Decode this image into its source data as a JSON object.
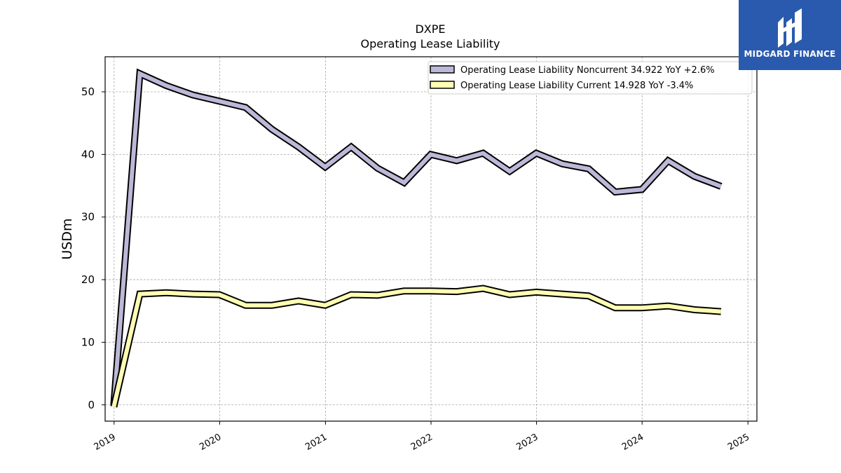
{
  "chart_data": {
    "type": "line",
    "ticker": "DXPE",
    "title": "Operating Lease Liability",
    "ylabel": "USDm",
    "xlabel": "",
    "ylim": [
      -2.6,
      55.6
    ],
    "y_ticks": [
      0,
      10,
      20,
      30,
      40,
      50
    ],
    "x_ticks": [
      "2019",
      "2020",
      "2021",
      "2022",
      "2023",
      "2024",
      "2025"
    ],
    "grid": true,
    "legend_position": "top-right",
    "x": [
      "2018-12-31",
      "2019-03-31",
      "2019-06-30",
      "2019-09-30",
      "2019-12-31",
      "2020-03-31",
      "2020-06-30",
      "2020-09-30",
      "2020-12-31",
      "2021-03-31",
      "2021-06-30",
      "2021-09-30",
      "2021-12-31",
      "2022-03-31",
      "2022-06-30",
      "2022-09-30",
      "2022-12-31",
      "2023-03-31",
      "2023-06-30",
      "2023-09-30",
      "2023-12-31",
      "2024-03-31",
      "2024-06-30",
      "2024-09-30"
    ],
    "series": [
      {
        "name": "Operating Lease Liability Noncurrent",
        "legend_label": "Operating Lease Liability Noncurrent  34.922 YoY +2.6%",
        "color": "#bcb8d8",
        "values": [
          0,
          52.9,
          51.0,
          49.5,
          48.5,
          47.5,
          44.0,
          41.2,
          38.0,
          41.2,
          37.8,
          35.5,
          40.0,
          39.0,
          40.2,
          37.3,
          40.2,
          38.5,
          37.7,
          34.0,
          34.4,
          39.0,
          36.5,
          34.9
        ]
      },
      {
        "name": "Operating Lease Liability Current",
        "legend_label": "Operating Lease Liability Current  14.928 YoY -3.4%",
        "color": "#ffffb3",
        "values": [
          -0.3,
          17.7,
          17.9,
          17.7,
          17.6,
          15.9,
          15.9,
          16.6,
          15.9,
          17.6,
          17.5,
          18.2,
          18.2,
          18.1,
          18.6,
          17.6,
          18.0,
          17.7,
          17.4,
          15.5,
          15.5,
          15.8,
          15.2,
          14.9
        ]
      }
    ]
  },
  "logo": {
    "text": "MIDGARD FINANCE"
  }
}
